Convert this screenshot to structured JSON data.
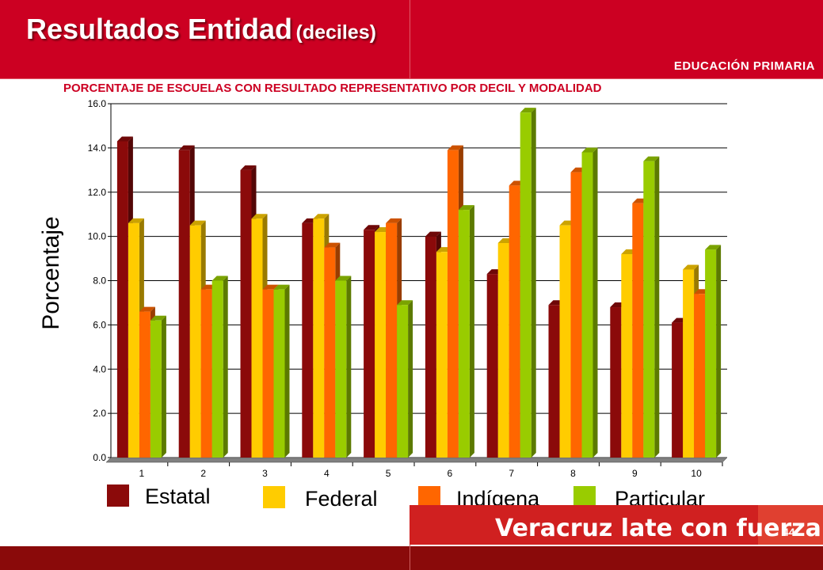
{
  "header": {
    "title_main": "Resultados Entidad",
    "title_sub": "(deciles)",
    "subheading": "EDUCACIÓN PRIMARIA",
    "caption": "PORCENTAJE DE ESCUELAS CON RESULTADO REPRESENTATIVO POR DECIL Y MODALIDAD"
  },
  "footer": {
    "slogan": "Veracruz late con fuerza",
    "page_number": "44"
  },
  "colors": {
    "header_bg": "#cc0022",
    "estatal": "#8b0a0a",
    "federal": "#ffcc00",
    "indigena": "#ff6600",
    "particular": "#99cc00"
  },
  "chart_data": {
    "type": "bar",
    "title": "",
    "xlabel": "",
    "ylabel": "Porcentaje",
    "ylim": [
      0,
      16
    ],
    "yticks": [
      "0.0",
      "2.0",
      "4.0",
      "6.0",
      "8.0",
      "10.0",
      "12.0",
      "14.0",
      "16.0"
    ],
    "categories": [
      "1",
      "2",
      "3",
      "4",
      "5",
      "6",
      "7",
      "8",
      "9",
      "10"
    ],
    "grid": true,
    "legend_position": "bottom",
    "series": [
      {
        "name": "Estatal",
        "color": "#8b0a0a",
        "values": [
          14.3,
          13.9,
          13.0,
          10.6,
          10.3,
          10.0,
          8.3,
          6.9,
          6.8,
          6.1
        ]
      },
      {
        "name": "Federal",
        "color": "#ffcc00",
        "values": [
          10.6,
          10.5,
          10.8,
          10.8,
          10.2,
          9.3,
          9.7,
          10.5,
          9.2,
          8.5
        ]
      },
      {
        "name": "Indígena",
        "color": "#ff6600",
        "values": [
          6.6,
          7.6,
          7.6,
          9.5,
          10.6,
          13.9,
          12.3,
          12.9,
          11.5,
          7.4
        ]
      },
      {
        "name": "Particular",
        "color": "#99cc00",
        "values": [
          6.2,
          8.0,
          7.6,
          8.0,
          6.9,
          11.2,
          15.6,
          13.8,
          13.4,
          9.4
        ]
      }
    ]
  }
}
